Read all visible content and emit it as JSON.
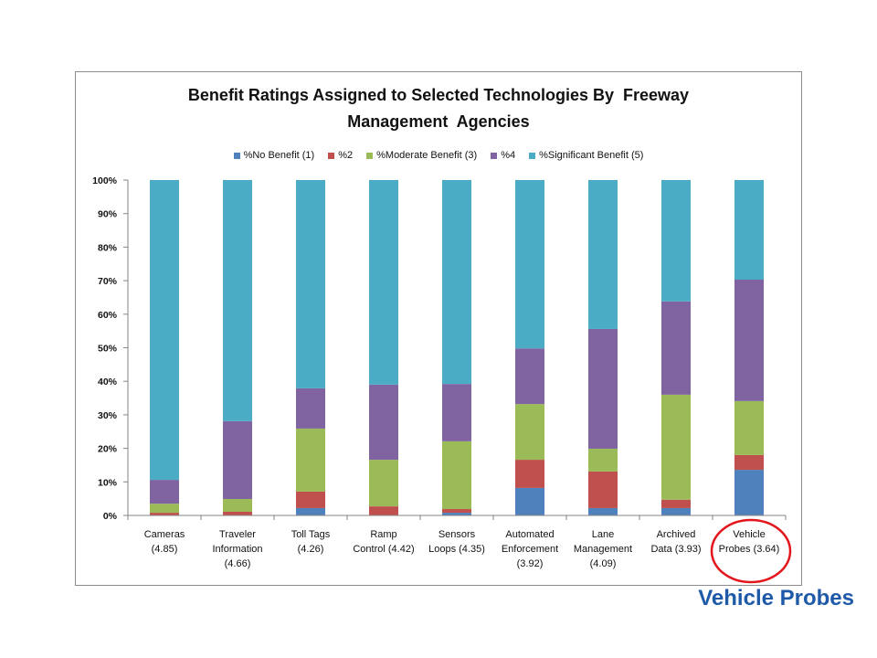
{
  "slide": {
    "caption": "Vehicle Probes",
    "caption_color": "#1E5AA8",
    "highlight_color": "#E3161C"
  },
  "chart_data": {
    "type": "bar",
    "stacked": true,
    "title_lines": [
      "Benefit Ratings Assigned to Selected Technologies By  Freeway",
      "Management  Agencies"
    ],
    "categories": [
      [
        "Cameras",
        "(4.85)"
      ],
      [
        "Traveler",
        "Information",
        "(4.66)"
      ],
      [
        "Toll Tags",
        "(4.26)"
      ],
      [
        "Ramp",
        "Control (4.42)"
      ],
      [
        "Sensors",
        "Loops (4.35)"
      ],
      [
        "Automated",
        "Enforcement",
        "(3.92)"
      ],
      [
        "Lane",
        "Management",
        "(4.09)"
      ],
      [
        "Archived",
        "Data (3.93)"
      ],
      [
        "Vehicle",
        "Probes (3.64)"
      ]
    ],
    "ylim": [
      0,
      100
    ],
    "yticks": [
      {
        "value": 0,
        "label": "0%"
      },
      {
        "value": 10,
        "label": "10%"
      },
      {
        "value": 20,
        "label": "20%"
      },
      {
        "value": 30,
        "label": "30%"
      },
      {
        "value": 40,
        "label": "40%"
      },
      {
        "value": 50,
        "label": "50%"
      },
      {
        "value": 60,
        "label": "60%"
      },
      {
        "value": 70,
        "label": "70%"
      },
      {
        "value": 80,
        "label": "80%"
      },
      {
        "value": 90,
        "label": "90%"
      },
      {
        "value": 100,
        "label": "100%"
      }
    ],
    "grid": false,
    "legend_position": "top",
    "highlighted_category_index": 8,
    "series": [
      {
        "name": "%No Benefit (1)",
        "color": "#4F81BD",
        "values": [
          0,
          0,
          2.2,
          0,
          0.8,
          8.2,
          2.2,
          2.2,
          13.6
        ]
      },
      {
        "name": "%2",
        "color": "#C0504D",
        "values": [
          0.8,
          1.1,
          4.9,
          2.7,
          1.1,
          8.4,
          10.9,
          2.5,
          4.4
        ]
      },
      {
        "name": "%Moderate Benefit (3)",
        "color": "#9BBB59",
        "values": [
          2.7,
          3.8,
          18.8,
          13.9,
          20.2,
          16.6,
          6.8,
          31.3,
          16.1
        ]
      },
      {
        "name": "%4",
        "color": "#8064A2",
        "values": [
          7.1,
          23.2,
          12.0,
          22.4,
          17.1,
          16.6,
          35.7,
          27.8,
          36.2
        ]
      },
      {
        "name": "%Significant Benefit (5)",
        "color": "#4BACC6",
        "values": [
          89.4,
          71.9,
          62.1,
          61.0,
          60.8,
          50.2,
          44.4,
          36.2,
          29.7
        ]
      }
    ]
  }
}
